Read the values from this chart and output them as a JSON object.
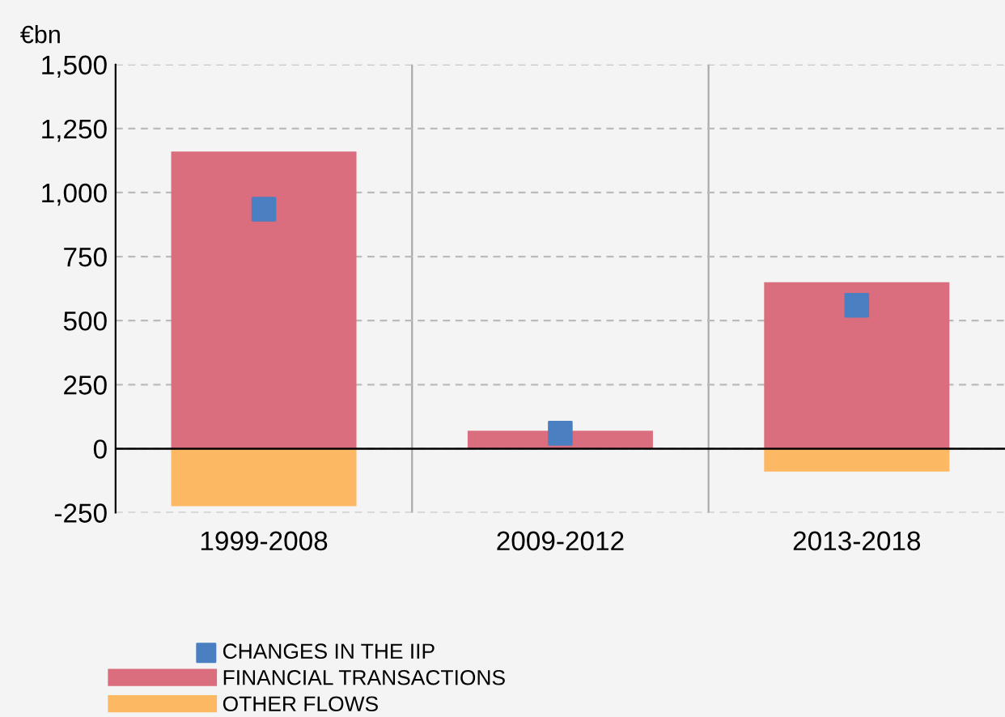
{
  "chart_data": {
    "type": "bar",
    "ylabel": "€bn",
    "stacked": true,
    "categories": [
      "1999-2008",
      "2009-2012",
      "2013-2018"
    ],
    "series": [
      {
        "name": "CHANGES IN THE IIP",
        "type": "scatter",
        "color": "#4a7fc1",
        "values": [
          935,
          60,
          560
        ]
      },
      {
        "name": "FINANCIAL TRANSACTIONS",
        "color": "#db6e7e",
        "values": [
          1160,
          70,
          650
        ]
      },
      {
        "name": "OTHER FLOWS",
        "color": "#fdb863",
        "values": [
          -225,
          null,
          -90
        ]
      }
    ],
    "ylim": [
      -250,
      1500
    ],
    "yticks": [
      {
        "value": -250,
        "label": "-250"
      },
      0,
      250,
      500,
      750,
      {
        "value": 1000,
        "label": "1,000"
      },
      {
        "value": 1250,
        "label": "1,250"
      },
      {
        "value": 1500,
        "label": "1,500"
      }
    ],
    "grid": "y",
    "legend": "bottom left",
    "marker": "square"
  }
}
